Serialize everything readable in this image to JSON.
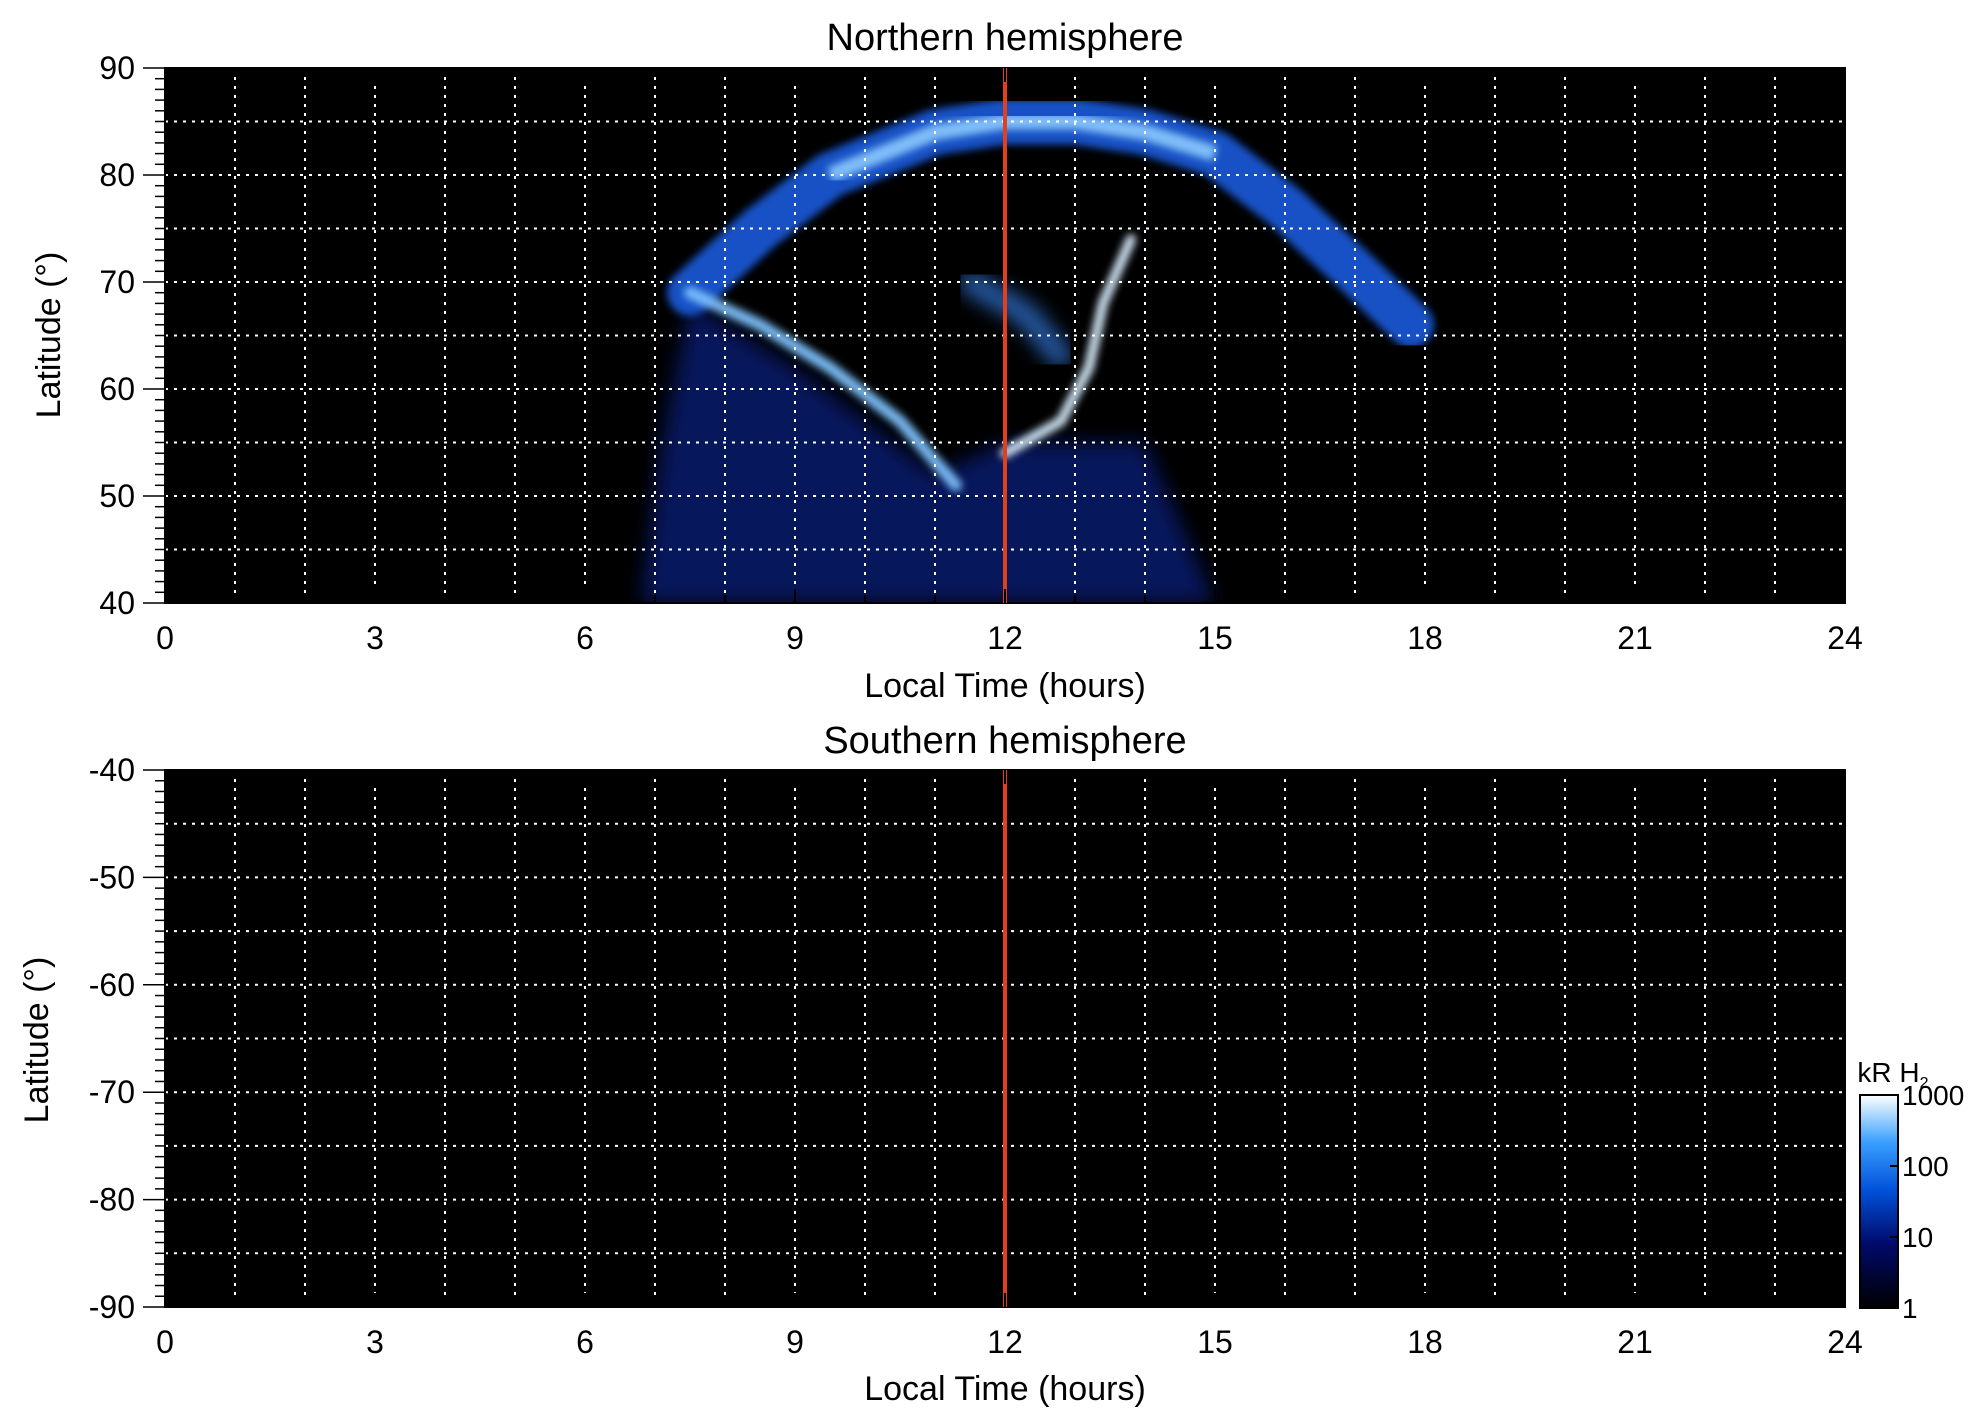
{
  "colors": {
    "background": "#000000",
    "grid": "#ffffff",
    "noon_line": "#e0401c",
    "colormap": [
      "#000000",
      "#000a6a",
      "#0050d8",
      "#3aa0ff",
      "#ffffff"
    ]
  },
  "colorbar": {
    "label": "kR H",
    "label_sub": "2",
    "ticks": [
      "1000",
      "100",
      "10",
      "1"
    ],
    "scale": "log",
    "range": [
      1,
      1000
    ]
  },
  "chart_data": [
    {
      "type": "heatmap",
      "title": "Northern hemisphere",
      "xlabel": "Local Time (hours)",
      "ylabel": "Latitude (°)",
      "xlim": [
        0,
        24
      ],
      "ylim": [
        40,
        90
      ],
      "xticks": [
        "0",
        "3",
        "6",
        "9",
        "12",
        "15",
        "18",
        "21",
        "24"
      ],
      "yticks": [
        "90",
        "80",
        "70",
        "60",
        "50",
        "40"
      ],
      "ytick_values": [
        90,
        80,
        70,
        60,
        50,
        40
      ],
      "grid": true,
      "noon_line_x": 12,
      "auroral_features": {
        "observed_lt_range": [
          6.8,
          17.8
        ],
        "outer_oval": [
          [
            7.5,
            69
          ],
          [
            8.5,
            75
          ],
          [
            9.5,
            80
          ],
          [
            11,
            84
          ],
          [
            12,
            85
          ],
          [
            13,
            85
          ],
          [
            14,
            84
          ],
          [
            15,
            82
          ],
          [
            16,
            77
          ],
          [
            17,
            71
          ],
          [
            17.8,
            66
          ]
        ],
        "dawn_arc": [
          [
            7.5,
            69
          ],
          [
            8.5,
            66
          ],
          [
            9.5,
            62
          ],
          [
            10.5,
            57
          ],
          [
            11.3,
            51
          ]
        ],
        "noon_arc": [
          [
            12,
            54
          ],
          [
            12.8,
            57
          ],
          [
            13.2,
            62
          ],
          [
            13.4,
            68
          ],
          [
            13.8,
            74
          ]
        ],
        "polar_patch": [
          [
            11.5,
            70
          ],
          [
            12.3,
            67
          ],
          [
            12.8,
            63
          ]
        ]
      }
    },
    {
      "type": "heatmap",
      "title": "Southern hemisphere",
      "xlabel": "Local Time (hours)",
      "ylabel": "Latitude (°)",
      "xlim": [
        0,
        24
      ],
      "ylim": [
        -90,
        -40
      ],
      "xticks": [
        "0",
        "3",
        "6",
        "9",
        "12",
        "15",
        "18",
        "21",
        "24"
      ],
      "yticks": [
        "-40",
        "-50",
        "-60",
        "-70",
        "-80",
        "-90"
      ],
      "ytick_values": [
        -40,
        -50,
        -60,
        -70,
        -80,
        -90
      ],
      "grid": true,
      "noon_line_x": 12,
      "auroral_features": {}
    }
  ]
}
